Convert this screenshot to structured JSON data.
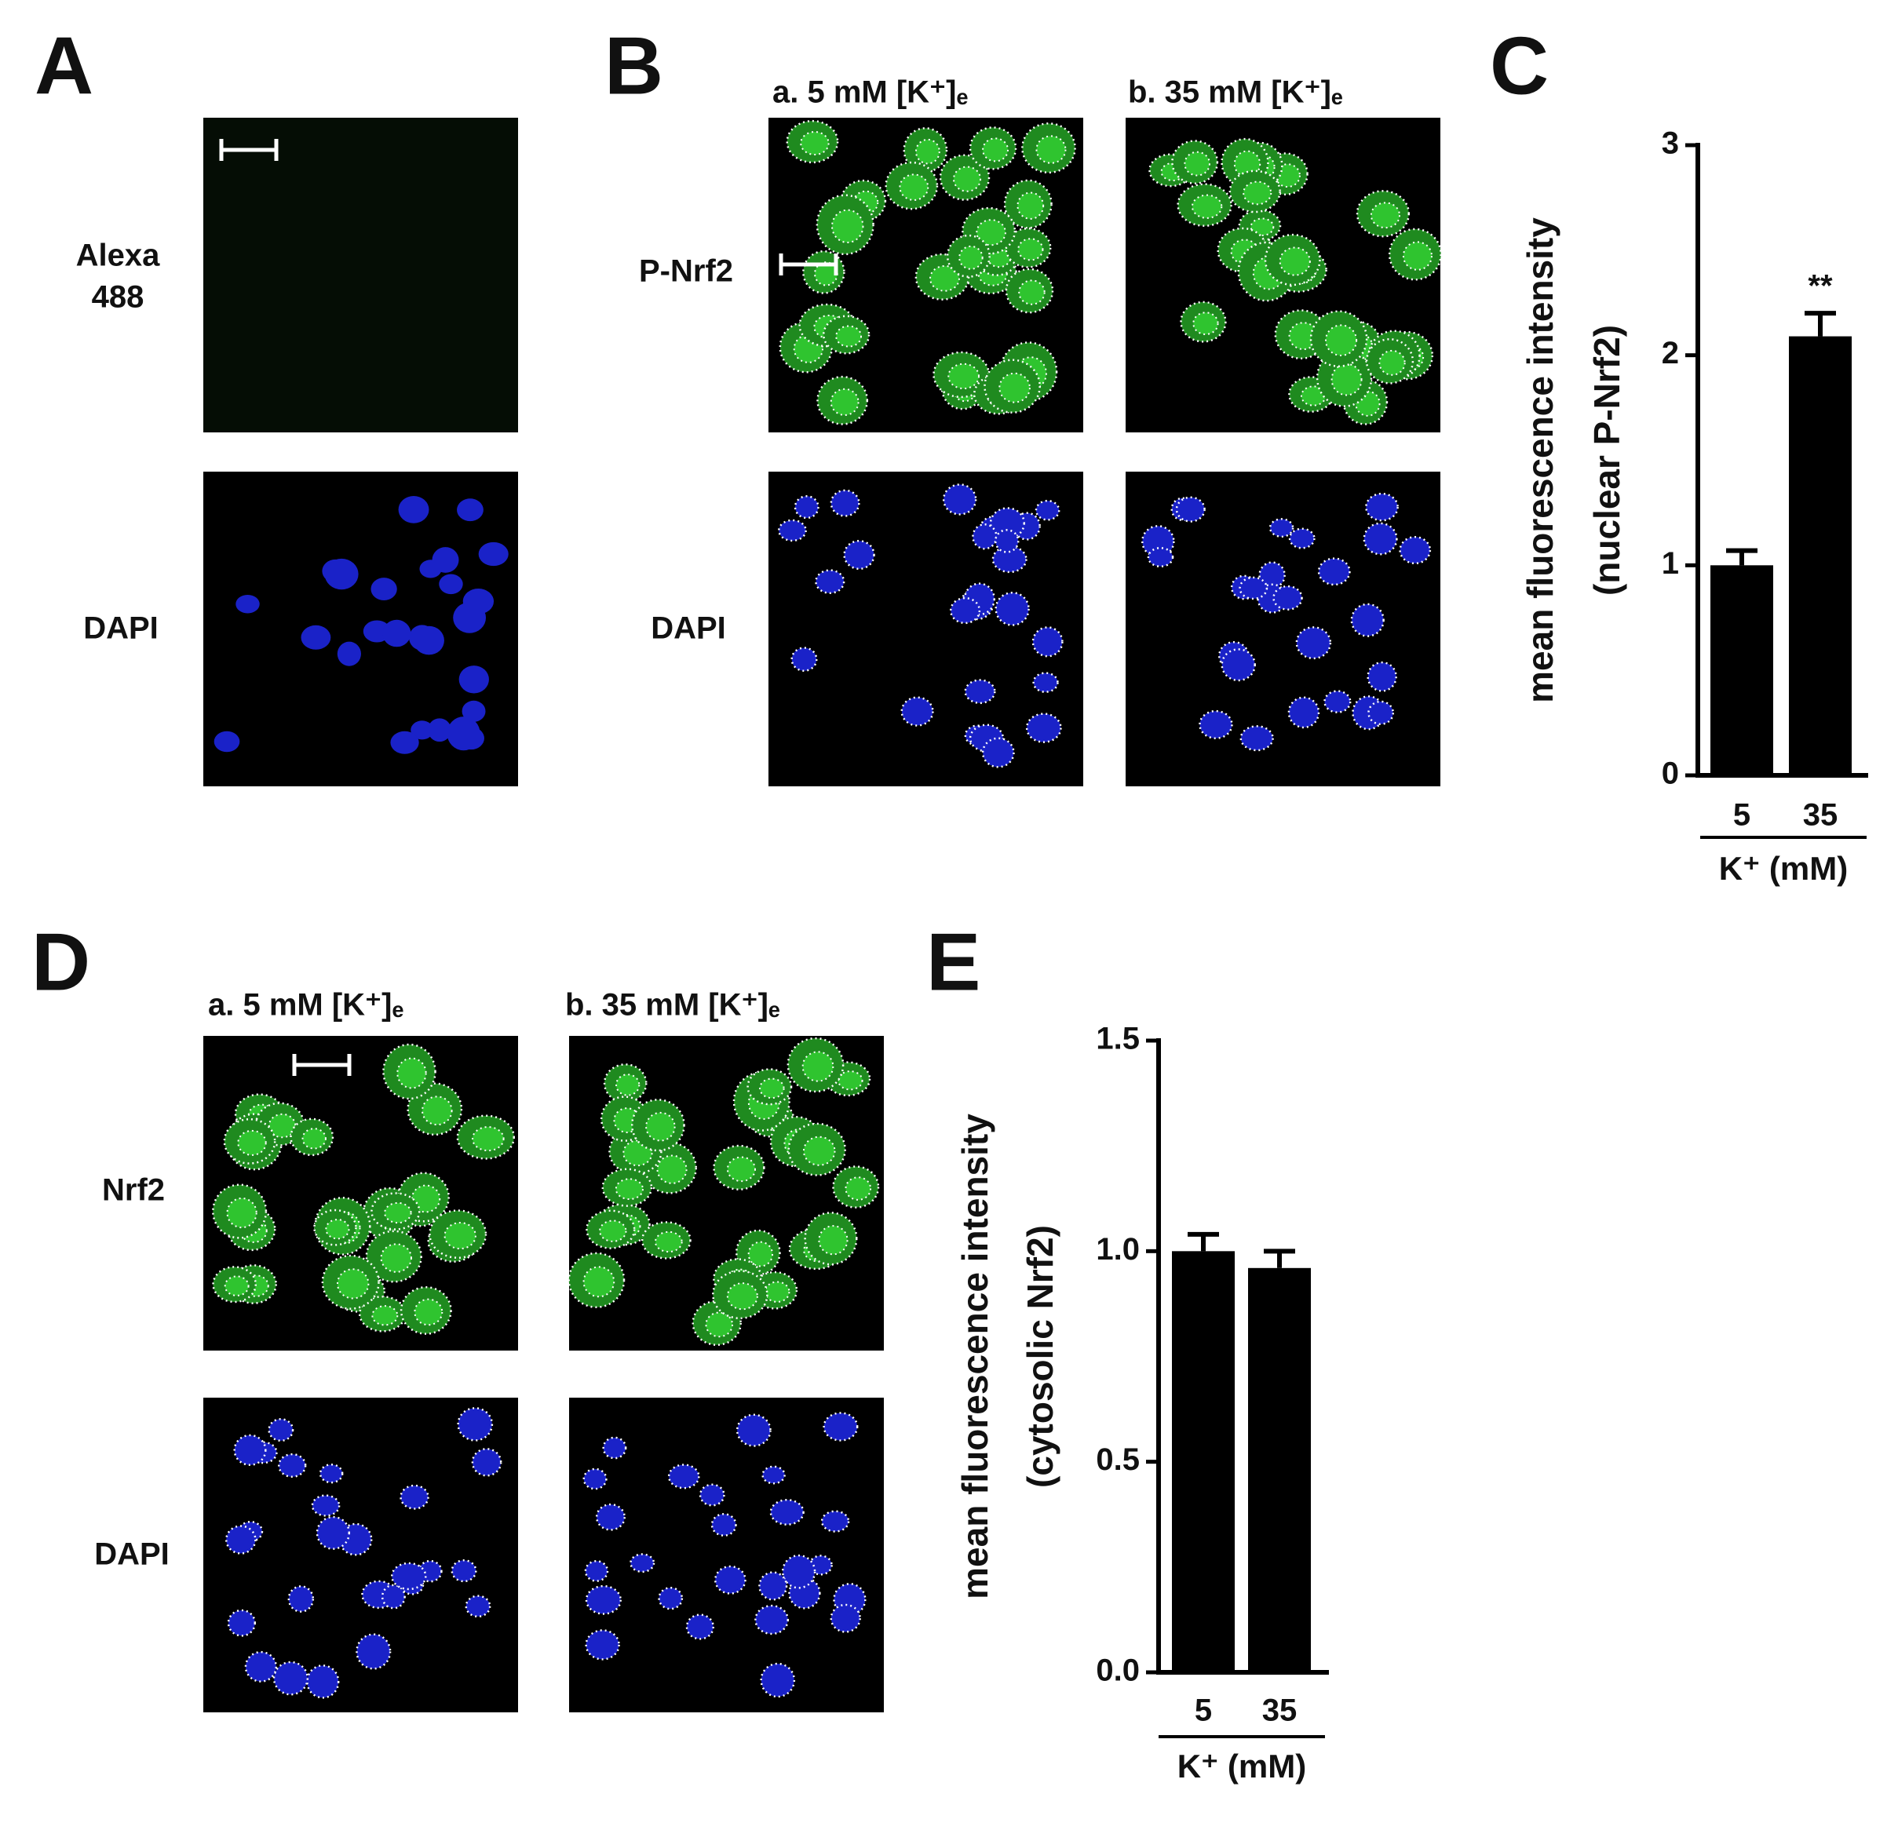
{
  "panel_labels": [
    "A",
    "B",
    "C",
    "D",
    "E"
  ],
  "panel_a": {
    "rows": [
      [
        "Alexa",
        "488"
      ],
      [
        "DAPI"
      ]
    ]
  },
  "panel_b": {
    "headers": [
      "a. 5 mM [K⁺]ₑ",
      "b. 35 mM [K⁺]ₑ"
    ],
    "rows": [
      "P-Nrf2",
      "DAPI"
    ]
  },
  "panel_d": {
    "headers": [
      "a. 5 mM [K⁺]ₑ",
      "b. 35 mM [K⁺]ₑ"
    ],
    "rows": [
      "Nrf2",
      "DAPI"
    ]
  },
  "chart_data": [
    {
      "type": "bar",
      "y_label": [
        "mean fluorescence intensity",
        "(nuclear P-Nrf2)"
      ],
      "x_label": "K⁺ (mM)",
      "categories": [
        "5",
        "35"
      ],
      "values": [
        1.0,
        2.09
      ],
      "errors": [
        0.07,
        0.11
      ],
      "color": "#000000",
      "ylim": [
        0,
        3
      ],
      "yticks": [
        0,
        1,
        2,
        3
      ],
      "annotation": {
        "text": "**",
        "category": "35"
      }
    },
    {
      "type": "bar",
      "y_label": [
        "mean fluorescence intensity",
        "(cytosolic Nrf2)"
      ],
      "x_label": "K⁺ (mM)",
      "categories": [
        "5",
        "35"
      ],
      "values": [
        1.0,
        0.96
      ],
      "errors": [
        0.04,
        0.04
      ],
      "color": "#000000",
      "ylim": [
        0,
        1.5
      ],
      "yticks": [
        {
          "value": 0,
          "label": "0.0"
        },
        0.5,
        {
          "value": 1,
          "label": "1.0"
        },
        1.5
      ]
    }
  ]
}
